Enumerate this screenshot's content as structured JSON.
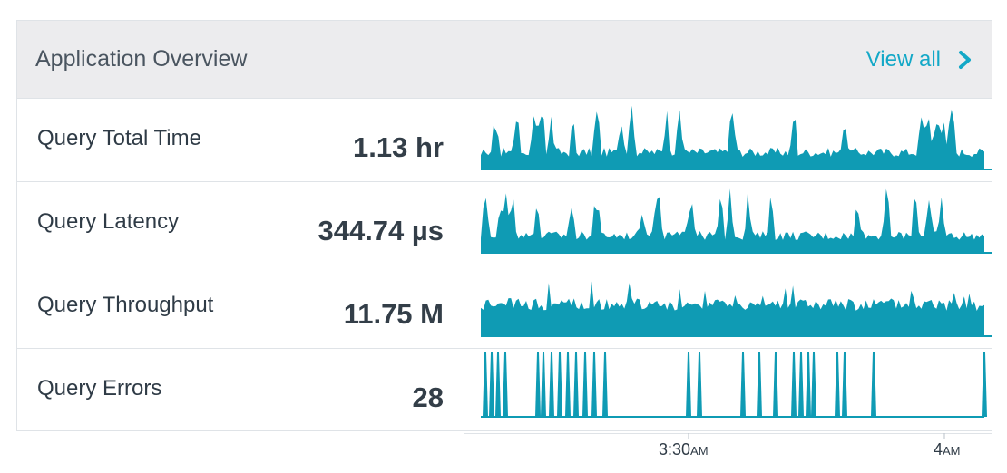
{
  "card": {
    "title": "Application Overview",
    "view_all_label": "View all",
    "view_all_icon": "chevron-right-icon"
  },
  "colors": {
    "accent": "#13a8c7",
    "series": "#0f9bb4",
    "header_bg": "#ececee"
  },
  "metrics": [
    {
      "label": "Query Total Time",
      "value": "1.13 hr",
      "profile": "spiky"
    },
    {
      "label": "Query Latency",
      "value": "344.74 µs",
      "profile": "spiky"
    },
    {
      "label": "Query Throughput",
      "value": "11.75 M",
      "profile": "dense"
    },
    {
      "label": "Query Errors",
      "value": "28",
      "profile": "errors"
    }
  ],
  "x_axis": {
    "ticks": [
      {
        "time": "3:30",
        "suffix": "AM"
      },
      {
        "time": "4",
        "suffix": "AM"
      }
    ]
  }
}
